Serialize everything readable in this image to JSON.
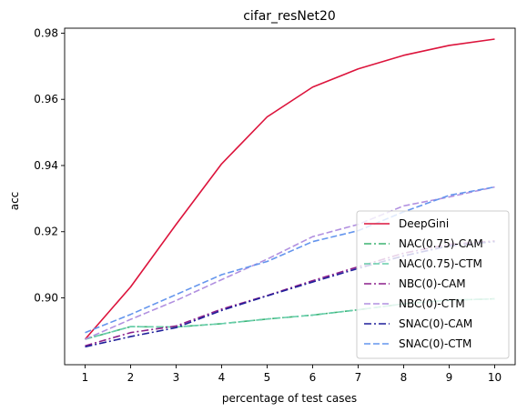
{
  "chart_data": {
    "type": "line",
    "title": "cifar_resNet20",
    "xlabel": "percentage of test cases",
    "ylabel": "acc",
    "x": [
      1,
      2,
      3,
      4,
      5,
      6,
      7,
      8,
      9,
      10
    ],
    "x_ticks": [
      "1",
      "2",
      "3",
      "4",
      "5",
      "6",
      "7",
      "8",
      "9",
      "10"
    ],
    "y_ticks": [
      "0.90",
      "0.92",
      "0.94",
      "0.96",
      "0.98"
    ],
    "y_tick_values": [
      0.9,
      0.92,
      0.94,
      0.96,
      0.98
    ],
    "xlim": [
      0.55,
      10.45
    ],
    "ylim": [
      0.8798,
      0.9815
    ],
    "grid": false,
    "legend_position": "lower-right",
    "series": [
      {
        "name": "DeepGini",
        "color": "#dc143c",
        "dash": "solid",
        "values": [
          0.8875,
          0.9033,
          0.9222,
          0.9405,
          0.9547,
          0.9637,
          0.9692,
          0.9733,
          0.9763,
          0.9782
        ]
      },
      {
        "name": "NAC(0.75)-CAM",
        "color": "#3cb371",
        "dash": "dashdot",
        "values": [
          0.8875,
          0.8913,
          0.8912,
          0.8922,
          0.8936,
          0.8948,
          0.8964,
          0.8982,
          0.8993,
          0.8997
        ]
      },
      {
        "name": "NAC(0.75)-CTM",
        "color": "#66cdaa",
        "dash": "dashed",
        "values": [
          0.8875,
          0.8913,
          0.8912,
          0.8922,
          0.8936,
          0.8948,
          0.8964,
          0.8982,
          0.8993,
          0.8997
        ]
      },
      {
        "name": "NBC(0)-CAM",
        "color": "#8b1f8b",
        "dash": "dashdot",
        "values": [
          0.8855,
          0.8895,
          0.8915,
          0.8966,
          0.9007,
          0.9052,
          0.9094,
          0.9135,
          0.9162,
          0.9172
        ]
      },
      {
        "name": "NBC(0)-CTM",
        "color": "#b190e0",
        "dash": "dashed",
        "values": [
          0.8875,
          0.8935,
          0.8992,
          0.9055,
          0.9117,
          0.9185,
          0.9222,
          0.9278,
          0.9305,
          0.9335
        ]
      },
      {
        "name": "SNAC(0)-CAM",
        "color": "#1f1f9a",
        "dash": "dashdot",
        "values": [
          0.8852,
          0.8883,
          0.891,
          0.8962,
          0.9006,
          0.9048,
          0.9089,
          0.9127,
          0.9157,
          0.917
        ]
      },
      {
        "name": "SNAC(0)-CTM",
        "color": "#6495ed",
        "dash": "dashed",
        "values": [
          0.8895,
          0.895,
          0.901,
          0.907,
          0.911,
          0.917,
          0.9203,
          0.926,
          0.931,
          0.9335
        ]
      }
    ]
  }
}
